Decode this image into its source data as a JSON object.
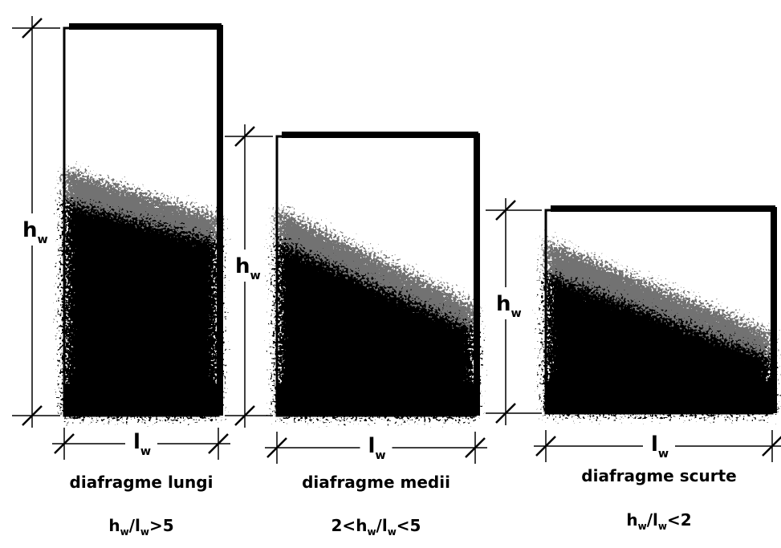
{
  "panels": [
    {
      "h_label": {
        "main": "h",
        "sub": "w"
      },
      "l_label": {
        "main": "l",
        "sub": "w"
      },
      "name": "diafragme lungi",
      "ratio": [
        "h",
        "w",
        "/l",
        "w",
        ">5"
      ]
    },
    {
      "h_label": {
        "main": "h",
        "sub": "w"
      },
      "l_label": {
        "main": "l",
        "sub": "w"
      },
      "name": "diafragme medii",
      "ratio": [
        "2<h",
        "w",
        "/l",
        "w",
        "<5"
      ]
    },
    {
      "h_label": {
        "main": "h",
        "sub": "w"
      },
      "l_label": {
        "main": "l",
        "sub": "w"
      },
      "name": "diafragme scurte",
      "ratio": [
        "h",
        "w",
        "/l",
        "w",
        "<2"
      ]
    }
  ]
}
